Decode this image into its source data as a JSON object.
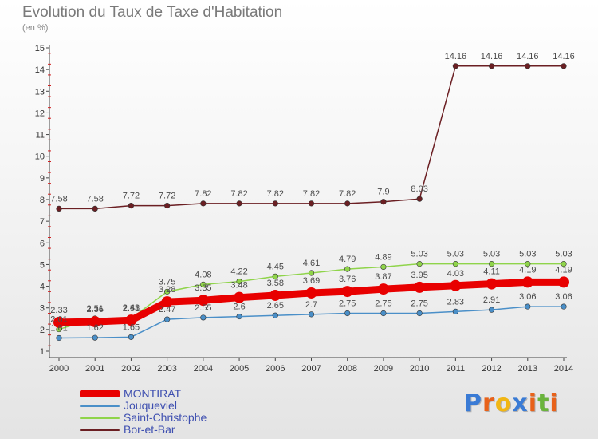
{
  "title": "Evolution du Taux de Taxe d'Habitation",
  "unit": "(en %)",
  "logo": {
    "text": "Proxiti",
    "letters": [
      {
        "ch": "P",
        "color": "#3a7bd5"
      },
      {
        "ch": "r",
        "color": "#e8621a"
      },
      {
        "ch": "o",
        "color": "#f1b614"
      },
      {
        "ch": "x",
        "color": "#3a7bd5"
      },
      {
        "ch": "i",
        "color": "#e8621a"
      },
      {
        "ch": "t",
        "color": "#6ab43c"
      },
      {
        "ch": "i",
        "color": "#e8621a"
      }
    ]
  },
  "chart_data": {
    "type": "line",
    "title": "Evolution du Taux de Taxe d'Habitation",
    "ylabel": "(en %)",
    "xlabel": "",
    "ylim": [
      1,
      15
    ],
    "yticks": [
      1,
      2,
      3,
      4,
      5,
      6,
      7,
      8,
      9,
      10,
      11,
      12,
      13,
      14,
      15
    ],
    "x": [
      "2000",
      "2001",
      "2002",
      "2003",
      "2004",
      "2005",
      "2006",
      "2007",
      "2008",
      "2009",
      "2010",
      "2011",
      "2012",
      "2013",
      "2014"
    ],
    "grid": false,
    "legend_position": "bottom-left",
    "series": [
      {
        "name": "Bor-et-Bar",
        "color": "#6b1f23",
        "values": [
          7.58,
          7.58,
          7.72,
          7.72,
          7.82,
          7.82,
          7.82,
          7.82,
          7.82,
          7.9,
          8.03,
          14.16,
          14.16,
          14.16,
          14.16
        ],
        "labels": [
          "7.58",
          "7.58",
          "7.72",
          "7.72",
          "7.82",
          "7.82",
          "7.82",
          "7.82",
          "7.82",
          "7.9",
          "8.03",
          "14.16",
          "14.16",
          "14.16",
          "14.16"
        ]
      },
      {
        "name": "Saint-Christophe",
        "color": "#8fd44a",
        "values": [
          2.01,
          2.51,
          2.51,
          3.75,
          4.08,
          4.22,
          4.45,
          4.61,
          4.79,
          4.89,
          5.03,
          5.03,
          5.03,
          5.03,
          5.03
        ],
        "labels": [
          "2.01",
          "2.51",
          "2.51",
          "3.75",
          "4.08",
          "4.22",
          "4.45",
          "4.61",
          "4.79",
          "4.89",
          "5.03",
          "5.03",
          "5.03",
          "5.03",
          "5.03"
        ]
      },
      {
        "name": "Jouqueviel",
        "color": "#4a8fc8",
        "values": [
          1.61,
          1.62,
          1.65,
          2.47,
          2.55,
          2.6,
          2.65,
          2.7,
          2.75,
          2.75,
          2.75,
          2.83,
          2.91,
          3.06,
          3.06
        ],
        "labels": [
          "1.61",
          "1.62",
          "1.65",
          "2.47",
          "2.55",
          "2.6",
          "2.65",
          "2.7",
          "2.75",
          "2.75",
          "2.75",
          "2.83",
          "2.91",
          "3.06",
          "3.06"
        ]
      },
      {
        "name": "MONTIRAT",
        "color": "#e80000",
        "values": [
          2.33,
          2.36,
          2.43,
          3.28,
          3.35,
          3.48,
          3.58,
          3.69,
          3.76,
          3.87,
          3.95,
          4.03,
          4.11,
          4.19,
          4.19
        ],
        "labels": [
          "2.33",
          "2.36",
          "2.43",
          "3.28",
          "3.35",
          "3.48",
          "3.58",
          "3.69",
          "3.76",
          "3.87",
          "3.95",
          "4.03",
          "4.11",
          "4.19",
          "4.19"
        ]
      }
    ],
    "legend": [
      "MONTIRAT",
      "Jouqueviel",
      "Saint-Christophe",
      "Bor-et-Bar"
    ]
  }
}
